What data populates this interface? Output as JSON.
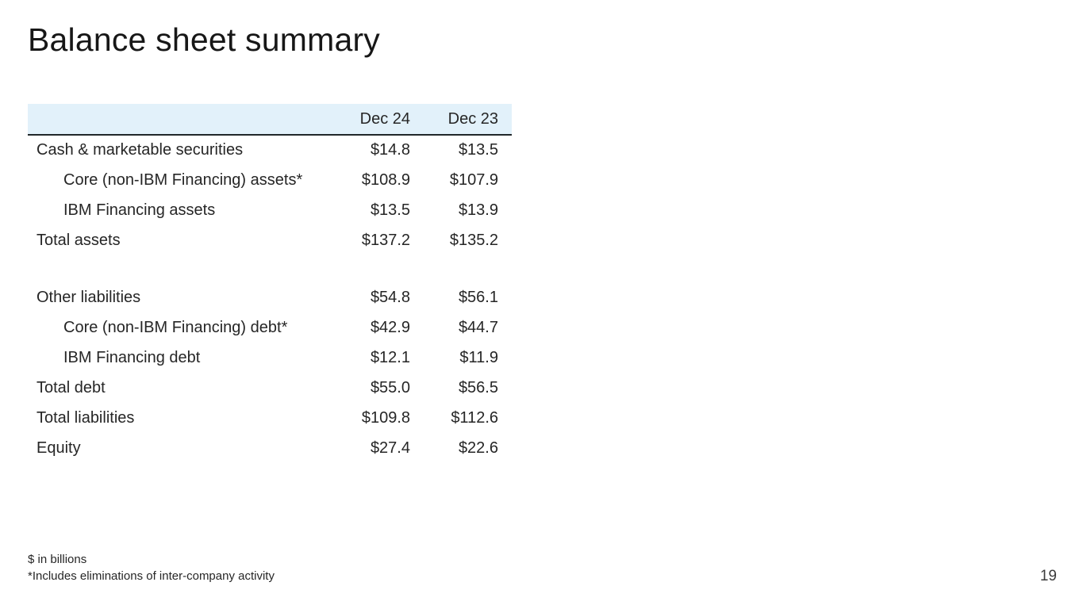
{
  "title": "Balance sheet summary",
  "table": {
    "columns": [
      "Dec 24",
      "Dec 23"
    ],
    "rows": [
      {
        "label": "Cash & marketable securities",
        "dec24": "$14.8",
        "dec23": "$13.5"
      },
      {
        "label": "Core (non-IBM Financing) assets*",
        "dec24": "$108.9",
        "dec23": "$107.9"
      },
      {
        "label": "IBM Financing assets",
        "dec24": "$13.5",
        "dec23": "$13.9"
      },
      {
        "label": "Total assets",
        "dec24": "$137.2",
        "dec23": "$135.2"
      },
      {
        "label": "Other liabilities",
        "dec24": "$54.8",
        "dec23": "$56.1"
      },
      {
        "label": "Core (non-IBM Financing) debt*",
        "dec24": "$42.9",
        "dec23": "$44.7"
      },
      {
        "label": "IBM Financing debt",
        "dec24": "$12.1",
        "dec23": "$11.9"
      },
      {
        "label": "Total debt",
        "dec24": "$55.0",
        "dec23": "$56.5"
      },
      {
        "label": "Total liabilities",
        "dec24": "$109.8",
        "dec23": "$112.6"
      },
      {
        "label": "Equity",
        "dec24": "$27.4",
        "dec23": "$22.6"
      }
    ]
  },
  "footnotes": [
    "$ in billions",
    "*Includes eliminations of inter-company activity"
  ],
  "page_number": "19",
  "colors": {
    "header_bg": "#e2f1fa",
    "header_border": "#21272a",
    "text": "#262626"
  }
}
